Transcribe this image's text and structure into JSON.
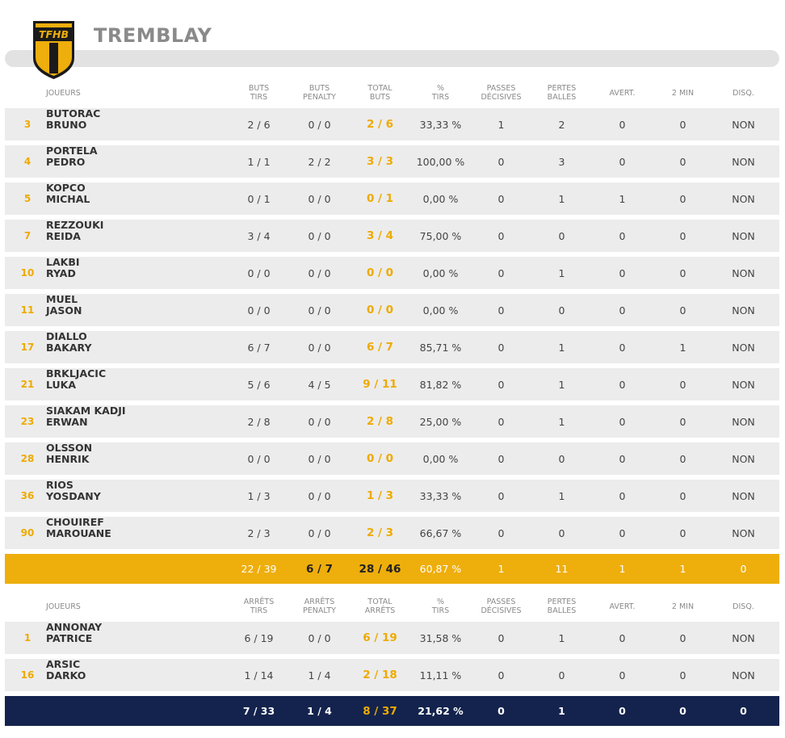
{
  "team": {
    "name": "TREMBLAY",
    "logo_text": "TFHB"
  },
  "players_header": [
    "JOUEURS",
    "BUTS\nTIRS",
    "BUTS\nPENALTY",
    "TOTAL\nBUTS",
    "%\nTIRS",
    "PASSES\nDÉCISIVES",
    "PERTES\nBALLES",
    "AVERT.",
    "2 MIN",
    "DISQ."
  ],
  "players": [
    {
      "num": "3",
      "last": "BUTORAC",
      "first": "BRUNO",
      "buts_tirs": "2 / 6",
      "penalty": "0 / 0",
      "total": "2 / 6",
      "pct": "33,33 %",
      "passes": "1",
      "pertes": "2",
      "avert": "0",
      "twomin": "0",
      "disq": "NON"
    },
    {
      "num": "4",
      "last": "PORTELA",
      "first": "PEDRO",
      "buts_tirs": "1 / 1",
      "penalty": "2 / 2",
      "total": "3 / 3",
      "pct": "100,00 %",
      "passes": "0",
      "pertes": "3",
      "avert": "0",
      "twomin": "0",
      "disq": "NON"
    },
    {
      "num": "5",
      "last": "KOPCO",
      "first": "MICHAL",
      "buts_tirs": "0 / 1",
      "penalty": "0 / 0",
      "total": "0 / 1",
      "pct": "0,00 %",
      "passes": "0",
      "pertes": "1",
      "avert": "1",
      "twomin": "0",
      "disq": "NON"
    },
    {
      "num": "7",
      "last": "REZZOUKI",
      "first": "REIDA",
      "buts_tirs": "3 / 4",
      "penalty": "0 / 0",
      "total": "3 / 4",
      "pct": "75,00 %",
      "passes": "0",
      "pertes": "0",
      "avert": "0",
      "twomin": "0",
      "disq": "NON"
    },
    {
      "num": "10",
      "last": "LAKBI",
      "first": "RYAD",
      "buts_tirs": "0 / 0",
      "penalty": "0 / 0",
      "total": "0 / 0",
      "pct": "0,00 %",
      "passes": "0",
      "pertes": "1",
      "avert": "0",
      "twomin": "0",
      "disq": "NON"
    },
    {
      "num": "11",
      "last": "MUEL",
      "first": "JASON",
      "buts_tirs": "0 / 0",
      "penalty": "0 / 0",
      "total": "0 / 0",
      "pct": "0,00 %",
      "passes": "0",
      "pertes": "0",
      "avert": "0",
      "twomin": "0",
      "disq": "NON"
    },
    {
      "num": "17",
      "last": "DIALLO",
      "first": "BAKARY",
      "buts_tirs": "6 / 7",
      "penalty": "0 / 0",
      "total": "6 / 7",
      "pct": "85,71 %",
      "passes": "0",
      "pertes": "1",
      "avert": "0",
      "twomin": "1",
      "disq": "NON"
    },
    {
      "num": "21",
      "last": "BRKLJACIC",
      "first": "LUKA",
      "buts_tirs": "5 / 6",
      "penalty": "4 / 5",
      "total": "9 / 11",
      "pct": "81,82 %",
      "passes": "0",
      "pertes": "1",
      "avert": "0",
      "twomin": "0",
      "disq": "NON"
    },
    {
      "num": "23",
      "last": "SIAKAM KADJI",
      "first": "ERWAN",
      "buts_tirs": "2 / 8",
      "penalty": "0 / 0",
      "total": "2 / 8",
      "pct": "25,00 %",
      "passes": "0",
      "pertes": "1",
      "avert": "0",
      "twomin": "0",
      "disq": "NON"
    },
    {
      "num": "28",
      "last": "OLSSON",
      "first": "HENRIK",
      "buts_tirs": "0 / 0",
      "penalty": "0 / 0",
      "total": "0 / 0",
      "pct": "0,00 %",
      "passes": "0",
      "pertes": "0",
      "avert": "0",
      "twomin": "0",
      "disq": "NON"
    },
    {
      "num": "36",
      "last": "RIOS",
      "first": "YOSDANY",
      "buts_tirs": "1 / 3",
      "penalty": "0 / 0",
      "total": "1 / 3",
      "pct": "33,33 %",
      "passes": "0",
      "pertes": "1",
      "avert": "0",
      "twomin": "0",
      "disq": "NON"
    },
    {
      "num": "90",
      "last": "CHOUIREF",
      "first": "MAROUANE",
      "buts_tirs": "2 / 3",
      "penalty": "0 / 0",
      "total": "2 / 3",
      "pct": "66,67 %",
      "passes": "0",
      "pertes": "0",
      "avert": "0",
      "twomin": "0",
      "disq": "NON"
    }
  ],
  "players_total": {
    "buts_tirs": "22 / 39",
    "penalty": "6 / 7",
    "total": "28 / 46",
    "pct": "60,87 %",
    "passes": "1",
    "pertes": "11",
    "avert": "1",
    "twomin": "1",
    "disq": "0"
  },
  "goalies_header": [
    "JOUEURS",
    "ARRÊTS\nTIRS",
    "ARRÊTS\nPENALTY",
    "TOTAL\nARRÊTS",
    "%\nTIRS",
    "PASSES\nDÉCISIVES",
    "PERTES\nBALLES",
    "AVERT.",
    "2 MIN",
    "DISQ."
  ],
  "goalies": [
    {
      "num": "1",
      "last": "ANNONAY",
      "first": "PATRICE",
      "buts_tirs": "6 / 19",
      "penalty": "0 / 0",
      "total": "6 / 19",
      "pct": "31,58 %",
      "passes": "0",
      "pertes": "1",
      "avert": "0",
      "twomin": "0",
      "disq": "NON"
    },
    {
      "num": "16",
      "last": "ARSIC",
      "first": "DARKO",
      "buts_tirs": "1 / 14",
      "penalty": "1 / 4",
      "total": "2 / 18",
      "pct": "11,11 %",
      "passes": "0",
      "pertes": "0",
      "avert": "0",
      "twomin": "0",
      "disq": "NON"
    }
  ],
  "goalies_total": {
    "buts_tirs": "7 / 33",
    "penalty": "1 / 4",
    "total": "8 / 37",
    "pct": "21,62 %",
    "passes": "0",
    "pertes": "1",
    "avert": "0",
    "twomin": "0",
    "disq": "0"
  },
  "colors": {
    "accent": "#eeae0c",
    "navy": "#13234d",
    "row_bg": "#ececec"
  }
}
